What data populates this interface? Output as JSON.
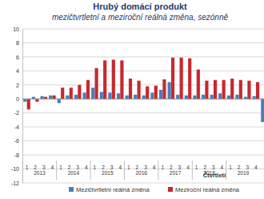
{
  "chart_data": {
    "type": "bar",
    "title": "Hrubý domácí produkt",
    "subtitle": "mezičtvrtletní a meziroční reálná změna, sezónně",
    "x_label": "Čtvrtletí",
    "categories": [
      "1",
      "2",
      "3",
      "4",
      "1",
      "2",
      "3",
      "4",
      "1",
      "2",
      "3",
      "4",
      "1",
      "2",
      "3",
      "4",
      "1",
      "2",
      "3",
      "4",
      "1",
      "2",
      "3",
      "4",
      "1",
      "2",
      "3",
      "4",
      null
    ],
    "years": [
      "2013",
      "2014",
      "2015",
      "2016",
      "2017",
      "2018",
      "2019"
    ],
    "series": [
      {
        "name": "Mezičtvrtletní reálná změna",
        "color": "#4a7ebb",
        "values": [
          -0.4,
          0.3,
          0.4,
          0.5,
          -0.6,
          0.5,
          0.6,
          0.9,
          1.6,
          1.0,
          0.9,
          0.8,
          0.5,
          0.6,
          0.5,
          0.9,
          1.3,
          2.4,
          0.6,
          0.5,
          0.5,
          0.6,
          0.6,
          0.8,
          0.5,
          0.6,
          0.3,
          0.4,
          -3.3
        ]
      },
      {
        "name": "Meziroční reálná změna",
        "color": "#c8282d",
        "values": [
          -1.5,
          -0.4,
          0.3,
          0.5,
          1.6,
          1.6,
          2.0,
          2.7,
          4.4,
          5.5,
          5.6,
          5.5,
          2.9,
          2.6,
          1.8,
          1.9,
          2.8,
          5.9,
          5.9,
          5.8,
          4.2,
          2.6,
          2.7,
          2.7,
          2.9,
          2.7,
          2.6,
          2.4,
          null
        ]
      }
    ],
    "ylim": [
      -12,
      10
    ],
    "yticks": [
      -12,
      -10,
      -8,
      -6,
      -4,
      -2,
      0,
      2,
      4,
      6,
      8,
      10
    ],
    "grid": true,
    "legend": "bottom"
  }
}
